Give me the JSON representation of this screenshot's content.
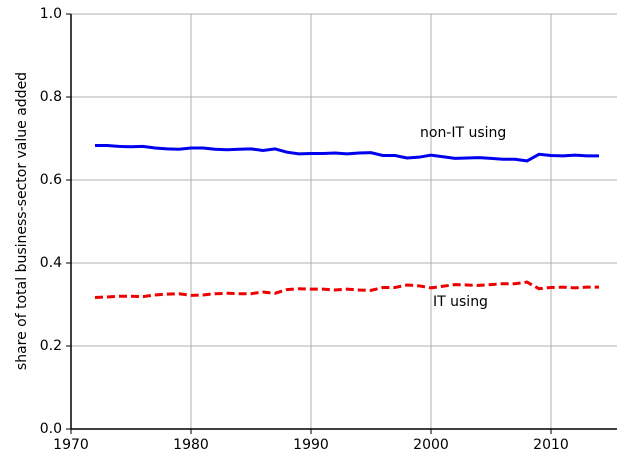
{
  "chart_data": {
    "type": "line",
    "y_label": "share of total business-sector value added",
    "x": [
      1972,
      1973,
      1974,
      1975,
      1976,
      1977,
      1978,
      1979,
      1980,
      1981,
      1982,
      1983,
      1984,
      1985,
      1986,
      1987,
      1988,
      1989,
      1990,
      1991,
      1992,
      1993,
      1994,
      1995,
      1996,
      1997,
      1998,
      1999,
      2000,
      2001,
      2002,
      2003,
      2004,
      2005,
      2006,
      2007,
      2008,
      2009,
      2010,
      2011,
      2012,
      2013,
      2014
    ],
    "series": [
      {
        "name": "non-IT using",
        "color": "#0000ee",
        "dash": false,
        "values": [
          0.683,
          0.683,
          0.681,
          0.68,
          0.681,
          0.677,
          0.675,
          0.674,
          0.677,
          0.677,
          0.674,
          0.673,
          0.674,
          0.675,
          0.671,
          0.675,
          0.667,
          0.663,
          0.664,
          0.664,
          0.665,
          0.663,
          0.665,
          0.666,
          0.659,
          0.659,
          0.653,
          0.655,
          0.66,
          0.656,
          0.652,
          0.653,
          0.654,
          0.652,
          0.65,
          0.65,
          0.646,
          0.662,
          0.659,
          0.658,
          0.66,
          0.658,
          0.658
        ]
      },
      {
        "name": "IT using",
        "color": "#ee0000",
        "dash": true,
        "values": [
          0.317,
          0.318,
          0.32,
          0.32,
          0.319,
          0.323,
          0.325,
          0.326,
          0.322,
          0.323,
          0.326,
          0.327,
          0.326,
          0.326,
          0.33,
          0.327,
          0.336,
          0.338,
          0.337,
          0.337,
          0.335,
          0.337,
          0.335,
          0.334,
          0.341,
          0.341,
          0.347,
          0.345,
          0.34,
          0.344,
          0.348,
          0.347,
          0.346,
          0.348,
          0.35,
          0.35,
          0.354,
          0.338,
          0.341,
          0.342,
          0.34,
          0.342,
          0.342
        ]
      }
    ],
    "xlim": [
      1970,
      2015.5
    ],
    "xticks": [
      1970,
      1980,
      1990,
      2000,
      2010
    ],
    "ylim": [
      0,
      1
    ],
    "yticks": [
      {
        "value": 0,
        "label": "0.0"
      },
      0.2,
      0.4,
      0.6,
      0.8,
      {
        "value": 1,
        "label": "1.0"
      }
    ],
    "grid": true
  }
}
